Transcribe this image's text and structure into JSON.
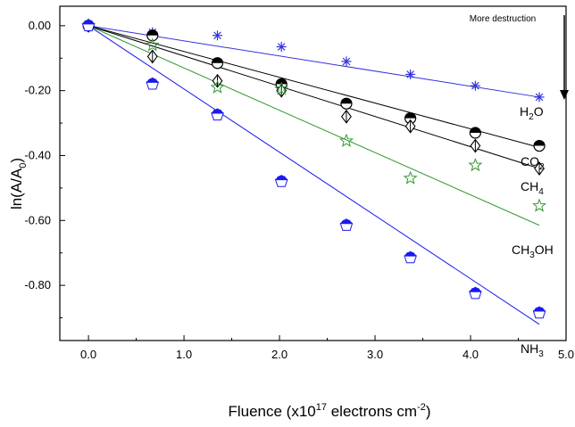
{
  "chart_data": {
    "type": "scatter",
    "xlabel": "Fluence (x10",
    "xlabel_sup": "17",
    "xlabel_mid": " electrons cm",
    "xlabel_sup2": "-2",
    "xlabel_end": ")",
    "ylabel": "ln(A/A",
    "ylabel_sub": "0",
    "ylabel_end": ")",
    "xlim": [
      -0.3,
      5.0
    ],
    "ylim": [
      -0.97,
      0.06
    ],
    "x_ticks": [
      0.0,
      1.0,
      2.0,
      3.0,
      4.0,
      5.0
    ],
    "x_tick_labels": [
      "0.0",
      "1.0",
      "2.0",
      "3.0",
      "4.0",
      "5.0"
    ],
    "y_ticks": [
      0.0,
      -0.2,
      -0.4,
      -0.6,
      -0.8
    ],
    "y_tick_labels": [
      "0.00",
      "-0.20",
      "-0.40",
      "-0.60",
      "-0.80"
    ],
    "annotation": "More destruction",
    "series": [
      {
        "name": "H2O",
        "label_parts": [
          "H",
          "2",
          "O"
        ],
        "color": "#3333dd",
        "marker": "asterisk",
        "x": [
          0.0,
          0.67,
          1.35,
          2.02,
          2.7,
          3.37,
          4.05,
          4.72
        ],
        "y": [
          0.0,
          -0.02,
          -0.03,
          -0.065,
          -0.11,
          -0.15,
          -0.185,
          -0.22
        ],
        "fit": [
          [
            0.0,
            0.0
          ],
          [
            4.72,
            -0.22
          ]
        ]
      },
      {
        "name": "CO2",
        "label_parts": [
          "CO",
          "2",
          ""
        ],
        "color": "#000000",
        "marker": "half-circle",
        "x": [
          0.0,
          0.67,
          1.35,
          2.02,
          2.7,
          3.37,
          4.05,
          4.72
        ],
        "y": [
          0.0,
          -0.03,
          -0.115,
          -0.18,
          -0.24,
          -0.285,
          -0.33,
          -0.37
        ],
        "fit": [
          [
            0.0,
            0.0
          ],
          [
            4.72,
            -0.375
          ]
        ]
      },
      {
        "name": "CH4",
        "label_parts": [
          "CH",
          "4",
          ""
        ],
        "color": "#000000",
        "marker": "diamond",
        "x": [
          0.0,
          0.67,
          1.35,
          2.02,
          2.7,
          3.37,
          4.05,
          4.72
        ],
        "y": [
          0.0,
          -0.095,
          -0.17,
          -0.2,
          -0.28,
          -0.31,
          -0.37,
          -0.44
        ],
        "fit": [
          [
            0.0,
            0.0
          ],
          [
            4.72,
            -0.44
          ]
        ]
      },
      {
        "name": "CH3OH",
        "label_parts": [
          "CH",
          "3",
          "OH"
        ],
        "color": "#339933",
        "marker": "star",
        "x": [
          0.0,
          0.67,
          1.35,
          2.02,
          2.7,
          3.37,
          4.05,
          4.72
        ],
        "y": [
          0.0,
          -0.06,
          -0.19,
          -0.195,
          -0.355,
          -0.47,
          -0.43,
          -0.555
        ],
        "fit": [
          [
            0.0,
            0.0
          ],
          [
            4.72,
            -0.615
          ]
        ]
      },
      {
        "name": "NH3",
        "label_parts": [
          "NH",
          "3",
          ""
        ],
        "color": "#1a1aee",
        "marker": "pentagon",
        "x": [
          0.0,
          0.67,
          1.35,
          2.02,
          2.7,
          3.37,
          4.05,
          4.72
        ],
        "y": [
          0.0,
          -0.18,
          -0.275,
          -0.48,
          -0.615,
          -0.715,
          -0.825,
          -0.885
        ],
        "fit": [
          [
            0.0,
            0.0
          ],
          [
            4.72,
            -0.92
          ]
        ]
      }
    ]
  }
}
